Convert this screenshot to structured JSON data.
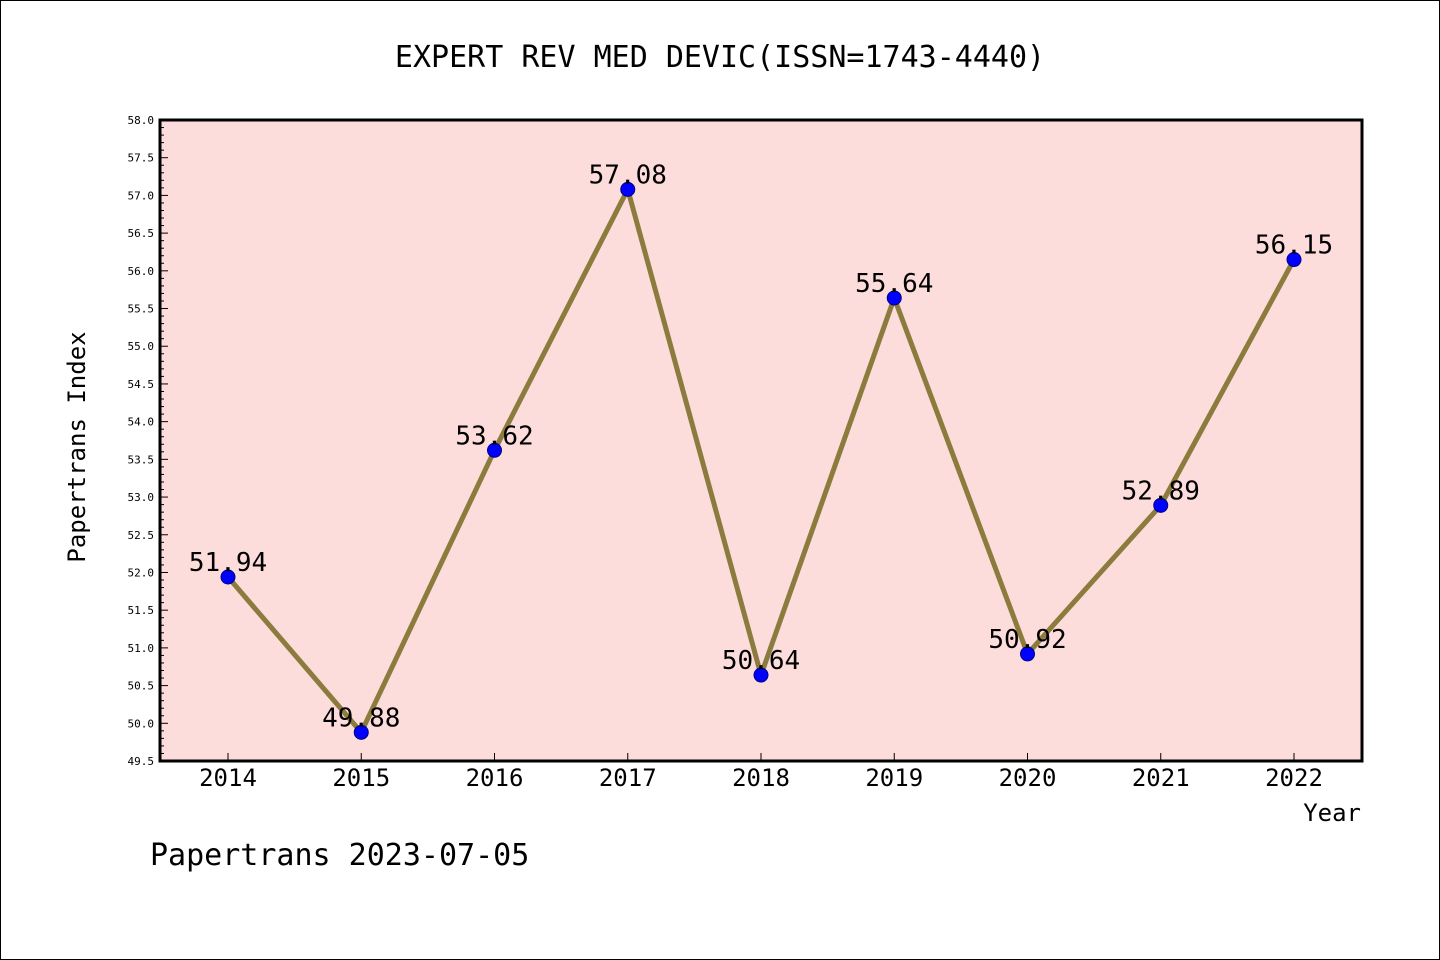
{
  "chart_data": {
    "type": "line",
    "title": "EXPERT REV MED DEVIC(ISSN=1743-4440)",
    "xlabel": "Year",
    "ylabel": "Papertrans Index",
    "categories": [
      "2014",
      "2015",
      "2016",
      "2017",
      "2018",
      "2019",
      "2020",
      "2021",
      "2022"
    ],
    "values": [
      51.94,
      49.88,
      53.62,
      57.08,
      50.64,
      55.64,
      50.92,
      52.89,
      56.15
    ],
    "data_labels": [
      "51.94",
      "49.88",
      "53.62",
      "57.08",
      "50.64",
      "55.64",
      "50.92",
      "52.89",
      "56.15"
    ],
    "ylim": [
      49.5,
      58.0
    ],
    "y_ticks": [
      "49.5",
      "50.0",
      "50.5",
      "51.0",
      "51.5",
      "52.0",
      "52.5",
      "53.0",
      "53.5",
      "54.0",
      "54.5",
      "55.0",
      "55.5",
      "56.0",
      "56.5",
      "57.0",
      "57.5",
      "58.0"
    ],
    "grid": false,
    "legend": "none",
    "footer": "Papertrans 2023-07-05",
    "colors": {
      "plot_background": "#fddcdc",
      "line": "#8b7b3c",
      "marker": "#0000ff",
      "marker_edge": "#000080"
    }
  }
}
